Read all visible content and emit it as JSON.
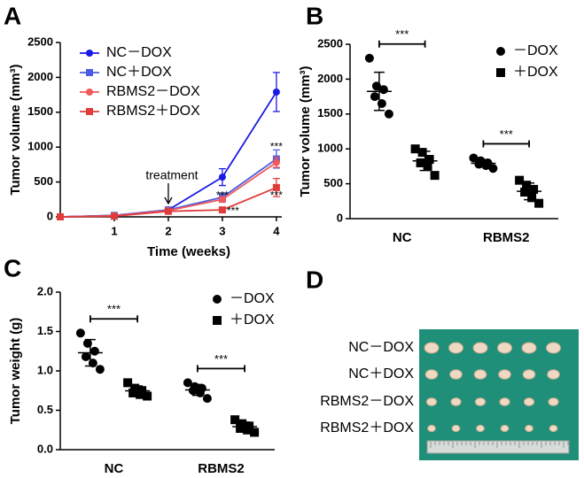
{
  "chart_data": [
    {
      "type": "line",
      "panel_label": "A",
      "xlabel": "Time (weeks)",
      "ylabel": "Tumor volume (mm³)",
      "x": [
        0,
        1,
        2,
        3,
        4
      ],
      "xlim": [
        0,
        4.1
      ],
      "xticks": [
        1,
        2,
        3,
        4
      ],
      "ylim": [
        0,
        2500
      ],
      "yticks": [
        0,
        500,
        1000,
        1500,
        2000,
        2500
      ],
      "legend": "upper left",
      "series": [
        {
          "name": "NC－DOX",
          "color": "#1a1ae6",
          "marker": "circle",
          "values": [
            0,
            20,
            100,
            570,
            1790
          ],
          "errors": [
            0,
            5,
            15,
            120,
            280
          ]
        },
        {
          "name": "NC＋DOX",
          "color": "#4a5ce0",
          "marker": "square",
          "values": [
            0,
            20,
            100,
            280,
            830
          ],
          "errors": [
            0,
            5,
            15,
            60,
            130
          ]
        },
        {
          "name": "RBMS2－DOX",
          "color": "#f05a5a",
          "marker": "circle",
          "values": [
            0,
            15,
            90,
            250,
            780
          ],
          "errors": [
            0,
            5,
            15,
            40,
            70
          ]
        },
        {
          "name": "RBMS2＋DOX",
          "color": "#e03c3c",
          "marker": "square",
          "values": [
            0,
            10,
            80,
            100,
            420
          ],
          "errors": [
            0,
            5,
            10,
            20,
            130
          ]
        }
      ],
      "annotations": [
        {
          "text": "treatment",
          "color": "#000000"
        },
        {
          "text": "***",
          "color": "#4a5ce0"
        },
        {
          "text": "***",
          "color": "#c02020"
        },
        {
          "text": "***",
          "color": "#4a5ce0"
        },
        {
          "text": "***",
          "color": "#c02020"
        }
      ]
    },
    {
      "type": "strip",
      "panel_label": "B",
      "ylabel": "Tumor volume (mm³)",
      "categories": [
        "NC",
        "RBMS2"
      ],
      "ylim": [
        0,
        2500
      ],
      "yticks": [
        0,
        500,
        1000,
        1500,
        2000,
        2500
      ],
      "legend": "upper right",
      "series": [
        {
          "name": "－DOX",
          "color": "#000000",
          "marker": "circle",
          "values": [
            [
              2300,
              1900,
              1850,
              1750,
              1650,
              1500
            ],
            [
              870,
              830,
              800,
              780,
              760,
              720
            ]
          ]
        },
        {
          "name": "＋DOX",
          "color": "#000000",
          "marker": "square",
          "values": [
            [
              1000,
              950,
              850,
              800,
              750,
              620
            ],
            [
              550,
              480,
              420,
              380,
              300,
              220
            ]
          ]
        }
      ],
      "annotations": [
        "***",
        "***"
      ]
    },
    {
      "type": "strip",
      "panel_label": "C",
      "ylabel": "Tumor weight (g)",
      "categories": [
        "NC",
        "RBMS2"
      ],
      "ylim": [
        0,
        2.0
      ],
      "yticks": [
        {
          "value": 0,
          "label": "0.0"
        },
        {
          "value": 0.5,
          "label": "0.5"
        },
        {
          "value": 1,
          "label": "1.0"
        },
        {
          "value": 1.5,
          "label": "1.5"
        },
        {
          "value": 2,
          "label": "2.0"
        }
      ],
      "legend": "upper right",
      "series": [
        {
          "name": "－DOX",
          "color": "#000000",
          "marker": "circle",
          "values": [
            [
              1.48,
              1.35,
              1.25,
              1.18,
              1.1,
              1.02
            ],
            [
              0.85,
              0.8,
              0.78,
              0.75,
              0.72,
              0.65
            ]
          ]
        },
        {
          "name": "＋DOX",
          "color": "#000000",
          "marker": "square",
          "values": [
            [
              0.85,
              0.78,
              0.75,
              0.72,
              0.7,
              0.68
            ],
            [
              0.38,
              0.33,
              0.3,
              0.27,
              0.25,
              0.22
            ]
          ]
        }
      ],
      "annotations": [
        "***",
        "***"
      ]
    }
  ],
  "photo_panel": {
    "panel_label": "D",
    "rows": [
      "NC－DOX",
      "NC＋DOX",
      "RBMS2－DOX",
      "RBMS2＋DOX"
    ]
  }
}
